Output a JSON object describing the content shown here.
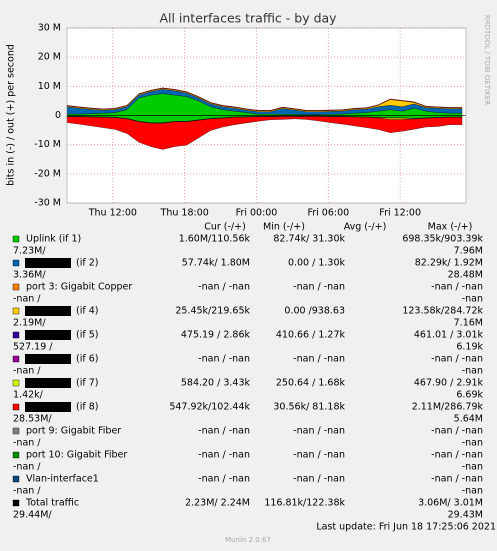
{
  "chart_data": {
    "type": "area",
    "title": "All interfaces traffic - by day",
    "y_label": "bits in (-) / out (+) per second",
    "side_text": "RRDTOOL / TOBI OETIKER",
    "xlim": [
      0,
      33.33
    ],
    "xticks": [
      {
        "value": 3.83,
        "label": "Thu 12:00"
      },
      {
        "value": 9.83,
        "label": "Thu 18:00"
      },
      {
        "value": 15.83,
        "label": "Fri 00:00"
      },
      {
        "value": 21.83,
        "label": "Fri 06:00"
      },
      {
        "value": 27.83,
        "label": "Fri 12:00"
      }
    ],
    "ylim": [
      -30,
      30
    ],
    "yticks": [
      {
        "value": -30,
        "label": "-30 M"
      },
      {
        "value": -20,
        "label": "-20 M"
      },
      {
        "value": -10,
        "label": "-10 M"
      },
      0,
      {
        "value": 10,
        "label": "10 M"
      },
      {
        "value": 20,
        "label": "20 M"
      },
      {
        "value": 30,
        "label": "30 M"
      }
    ],
    "grid": true,
    "x": [
      0,
      1,
      2,
      3,
      4,
      5,
      6,
      7,
      8,
      9,
      10,
      11,
      12,
      13,
      14,
      15,
      16,
      17,
      18,
      19,
      20,
      21,
      22,
      23,
      24,
      25,
      26,
      27,
      28,
      29,
      30,
      31,
      32,
      33
    ],
    "series": [
      {
        "name": "Uplink (if 1)",
        "color": "#00cc00",
        "values": [
          0.5,
          0.5,
          0.6,
          0.8,
          1,
          2,
          6,
          7,
          7.5,
          7,
          6.5,
          5,
          3,
          2,
          1.5,
          1,
          0.5,
          0.5,
          0.4,
          0.4,
          0.3,
          0.3,
          0.4,
          0.5,
          0.8,
          1,
          1.5,
          2,
          1.5,
          2.5,
          1.5,
          1,
          0.8,
          0.8
        ],
        "values_in": [
          -0.3,
          -0.3,
          -0.4,
          -0.5,
          -0.6,
          -1,
          -2,
          -2.5,
          -2.5,
          -2,
          -2,
          -1.5,
          -1,
          -0.8,
          -0.5,
          -0.4,
          -0.3,
          -0.3,
          -0.2,
          -0.2,
          -0.2,
          -0.2,
          -0.3,
          -0.3,
          -0.4,
          -0.5,
          -0.6,
          -0.8,
          -0.8,
          -1,
          -0.8,
          -0.6,
          -0.5,
          -0.5
        ]
      },
      {
        "name": "(if 2)",
        "color": "#0066b3",
        "values": [
          2.5,
          2,
          1.5,
          1,
          1,
          1,
          1,
          1.2,
          1.5,
          1.5,
          1.2,
          1,
          1,
          1,
          1,
          0.8,
          0.8,
          0.8,
          2,
          1.5,
          1,
          1,
          1,
          1,
          1.2,
          1.2,
          1.5,
          1.5,
          1.5,
          1.5,
          1.2,
          1.5,
          1.5,
          1.5
        ],
        "values_in": [
          -0.1,
          -0.1,
          -0.1,
          -0.1,
          -0.1,
          -0.1,
          -0.1,
          -0.1,
          -0.1,
          -0.1,
          -0.1,
          -0.1,
          -0.1,
          -0.1,
          -0.1,
          -0.1,
          -0.1,
          -0.1,
          -0.1,
          -0.1,
          -0.1,
          -0.1,
          -0.1,
          -0.1,
          -0.1,
          -0.1,
          -0.1,
          -0.1,
          -0.1,
          -0.1,
          -0.1,
          -0.1,
          -0.1,
          -0.1
        ]
      },
      {
        "name": "(if 4)",
        "color": "#ffcc00",
        "values": [
          0.3,
          0.3,
          0.3,
          0.3,
          0.3,
          0.3,
          0.3,
          0.3,
          0.3,
          0.3,
          0.3,
          0.3,
          0.3,
          0.3,
          0.3,
          0.3,
          0.3,
          0.3,
          0.3,
          0.3,
          0.3,
          0.3,
          0.3,
          0.3,
          0.3,
          0.3,
          0.5,
          2,
          2,
          0.5,
          0.3,
          0.3,
          0.3,
          0.3
        ],
        "values_in": [
          -0.05,
          -0.05,
          -0.05,
          -0.05,
          -0.05,
          -0.05,
          -0.05,
          -0.05,
          -0.05,
          -0.05,
          -0.05,
          -0.05,
          -0.05,
          -0.05,
          -0.05,
          -0.05,
          -0.05,
          -0.05,
          -0.05,
          -0.05,
          -0.05,
          -0.05,
          -0.05,
          -0.05,
          -0.05,
          -0.05,
          -0.1,
          -0.5,
          -0.5,
          -0.1,
          -0.05,
          -0.05,
          -0.05,
          -0.05
        ]
      },
      {
        "name": "(if 8)",
        "color": "#ff0000",
        "values": [
          0.2,
          0.2,
          0.2,
          0.2,
          0.2,
          0.2,
          0.2,
          0.2,
          0.2,
          0.2,
          0.2,
          0.2,
          0.2,
          0.2,
          0.2,
          0.2,
          0.2,
          0.2,
          0.2,
          0.2,
          0.2,
          0.2,
          0.2,
          0.2,
          0.2,
          0.2,
          0.2,
          0.2,
          0.2,
          0.2,
          0.2,
          0.2,
          0.2,
          0.2
        ],
        "values_in": [
          -2,
          -2.5,
          -3,
          -3.5,
          -4,
          -5,
          -7,
          -8,
          -9,
          -8.5,
          -8,
          -6,
          -4,
          -3,
          -2.5,
          -2,
          -1.5,
          -1,
          -1,
          -0.8,
          -1,
          -1.5,
          -2,
          -2.5,
          -3,
          -3.5,
          -4,
          -4.5,
          -4,
          -3.5,
          -3,
          -3,
          -2.5,
          -2.5
        ]
      }
    ],
    "legend": {
      "headers": [
        "Cur (-/+)",
        "Min (-/+)",
        "Avg (-/+)",
        "Max (-/+)"
      ],
      "rows": [
        {
          "color": "#00cc00",
          "label": "Uplink (if 1)",
          "redacted": false,
          "cur": "1.60M/110.56k",
          "min": "82.74k/ 31.30k",
          "avg": "698.35k/903.39k",
          "max_in": "7.23M/",
          "max_out": "7.96M"
        },
        {
          "color": "#0066b3",
          "label": "(if 2)",
          "redacted": true,
          "cur": "57.74k/  1.80M",
          "min": "0.00 /  1.30k",
          "avg": "82.29k/  1.92M",
          "max_in": "3.36M/",
          "max_out": "28.48M"
        },
        {
          "color": "#ff8000",
          "label": "port 3: Gigabit Copper",
          "redacted": false,
          "cur": "-nan /  -nan",
          "min": "-nan /  -nan",
          "avg": "-nan /  -nan",
          "max_in": "-nan /",
          "max_out": "-nan"
        },
        {
          "color": "#ffcc00",
          "label": "(if 4)",
          "redacted": true,
          "cur": "25.45k/219.65k",
          "min": "0.00 /938.63",
          "avg": "123.58k/284.72k",
          "max_in": "2.19M/",
          "max_out": "7.16M"
        },
        {
          "color": "#330099",
          "label": "(if 5)",
          "redacted": true,
          "cur": "475.19 /  2.86k",
          "min": "410.66 /  1.27k",
          "avg": "461.01 /  3.01k",
          "max_in": "527.19 /",
          "max_out": "6.19k"
        },
        {
          "color": "#990099",
          "label": "(if 6)",
          "redacted": true,
          "cur": "-nan /  -nan",
          "min": "-nan /  -nan",
          "avg": "-nan /  -nan",
          "max_in": "-nan /",
          "max_out": "-nan"
        },
        {
          "color": "#ccff00",
          "label": "(if 7)",
          "redacted": true,
          "cur": "584.20 /  3.43k",
          "min": "250.64 /  1.68k",
          "avg": "467.90 /  2.91k",
          "max_in": "1.42k/",
          "max_out": "6.69k"
        },
        {
          "color": "#ff0000",
          "label": "(if 8)",
          "redacted": true,
          "cur": "547.92k/102.44k",
          "min": "30.56k/ 81.18k",
          "avg": "2.11M/286.79k",
          "max_in": "28.53M/",
          "max_out": "5.64M"
        },
        {
          "color": "#808080",
          "label": "port 9: Gigabit Fiber",
          "redacted": false,
          "cur": "-nan /  -nan",
          "min": "-nan /  -nan",
          "avg": "-nan /  -nan",
          "max_in": "-nan /",
          "max_out": "-nan"
        },
        {
          "color": "#008f00",
          "label": "port 10: Gigabit Fiber",
          "redacted": false,
          "cur": "-nan /  -nan",
          "min": "-nan /  -nan",
          "avg": "-nan /  -nan",
          "max_in": "-nan /",
          "max_out": "-nan"
        },
        {
          "color": "#00487d",
          "label": "Vlan-interface1",
          "redacted": false,
          "cur": "-nan /  -nan",
          "min": "-nan /  -nan",
          "avg": "-nan /  -nan",
          "max_in": "-nan /",
          "max_out": "-nan"
        },
        {
          "color": "#000000",
          "label": "Total traffic",
          "redacted": false,
          "cur": "2.23M/  2.24M",
          "min": "116.81k/122.38k",
          "avg": "3.06M/  3.01M",
          "max_in": "29.44M/",
          "max_out": "29.43M"
        }
      ]
    },
    "last_update": "Last update: Fri Jun 18 17:25:06 2021",
    "footer": "Munin 2.0.67"
  }
}
